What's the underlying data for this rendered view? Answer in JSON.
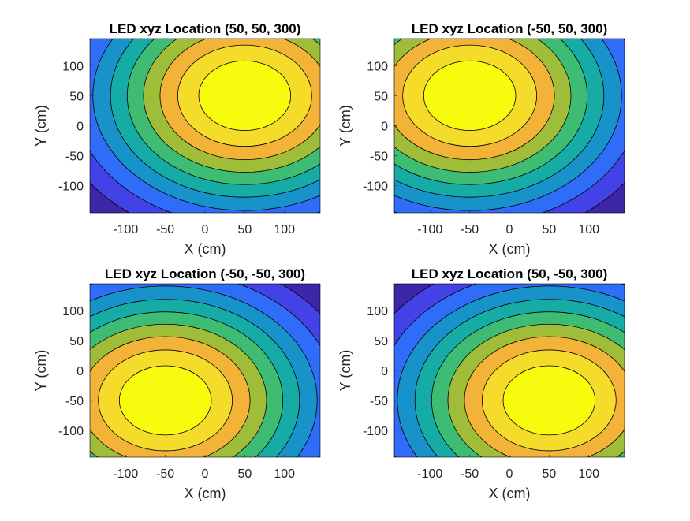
{
  "figure": {
    "colors": {
      "background": "#ffffff",
      "contour_line": "#000000",
      "text": "#262626",
      "colormap": [
        "#3e26a8",
        "#4242e6",
        "#2f6cf7",
        "#1893ca",
        "#17aba6",
        "#3fbc73",
        "#a0bd39",
        "#f2b338",
        "#f5dc2b",
        "#f9fb0e"
      ]
    }
  },
  "chart_data": [
    {
      "type": "contour",
      "title": "LED xyz Location (50, 50, 300)",
      "led": {
        "x": 50,
        "y": 50,
        "z": 300
      },
      "xlabel": "X (cm)",
      "ylabel": "Y (cm)",
      "xlim": [
        -145,
        145
      ],
      "ylim": [
        -145,
        145
      ],
      "xticks": [
        -100,
        -50,
        0,
        50,
        100
      ],
      "xtick_labels": [
        "-100",
        "-50",
        "0",
        "50",
        "100"
      ],
      "yticks": [
        -100,
        -50,
        0,
        50,
        100
      ],
      "ytick_labels": [
        "-100",
        "-50",
        "0",
        "50",
        "100"
      ],
      "levels": 10
    },
    {
      "type": "contour",
      "title": "LED xyz Location (-50, 50, 300)",
      "led": {
        "x": -50,
        "y": 50,
        "z": 300
      },
      "xlabel": "X (cm)",
      "ylabel": "Y (cm)",
      "xlim": [
        -145,
        145
      ],
      "ylim": [
        -145,
        145
      ],
      "xticks": [
        -100,
        -50,
        0,
        50,
        100
      ],
      "xtick_labels": [
        "-100",
        "-50",
        "0",
        "50",
        "100"
      ],
      "yticks": [
        -100,
        -50,
        0,
        50,
        100
      ],
      "ytick_labels": [
        "-100",
        "-50",
        "0",
        "50",
        "100"
      ],
      "levels": 10
    },
    {
      "type": "contour",
      "title": "LED xyz Location (-50, -50, 300)",
      "led": {
        "x": -50,
        "y": -50,
        "z": 300
      },
      "xlabel": "X (cm)",
      "ylabel": "Y (cm)",
      "xlim": [
        -145,
        145
      ],
      "ylim": [
        -145,
        145
      ],
      "xticks": [
        -100,
        -50,
        0,
        50,
        100
      ],
      "xtick_labels": [
        "-100",
        "-50",
        "0",
        "50",
        "100"
      ],
      "yticks": [
        -100,
        -50,
        0,
        50,
        100
      ],
      "ytick_labels": [
        "-100",
        "-50",
        "0",
        "50",
        "100"
      ],
      "levels": 10
    },
    {
      "type": "contour",
      "title": "LED xyz Location (50, -50, 300)",
      "led": {
        "x": 50,
        "y": -50,
        "z": 300
      },
      "xlabel": "X (cm)",
      "ylabel": "Y (cm)",
      "xlim": [
        -145,
        145
      ],
      "ylim": [
        -145,
        145
      ],
      "xticks": [
        -100,
        -50,
        0,
        50,
        100
      ],
      "xtick_labels": [
        "-100",
        "-50",
        "0",
        "50",
        "100"
      ],
      "yticks": [
        -100,
        -50,
        0,
        50,
        100
      ],
      "ytick_labels": [
        "-100",
        "-50",
        "0",
        "50",
        "100"
      ],
      "levels": 10
    }
  ]
}
